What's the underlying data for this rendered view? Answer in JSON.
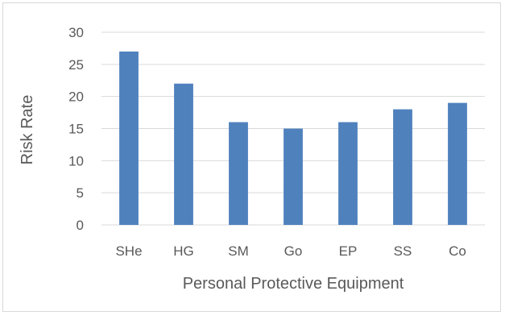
{
  "chart_data": {
    "type": "bar",
    "categories": [
      "SHe",
      "HG",
      "SM",
      "Go",
      "EP",
      "SS",
      "Co"
    ],
    "values": [
      27,
      22,
      16,
      15,
      16,
      18,
      19
    ],
    "xlabel": "Personal Protective Equipment",
    "ylabel": "Risk Rate",
    "ylim": [
      0,
      30
    ],
    "yticks": [
      0,
      5,
      10,
      15,
      20,
      25,
      30
    ],
    "grid": true,
    "legend": "none",
    "bar_color": "#4f81bd",
    "grid_color": "#d9d9d9"
  }
}
